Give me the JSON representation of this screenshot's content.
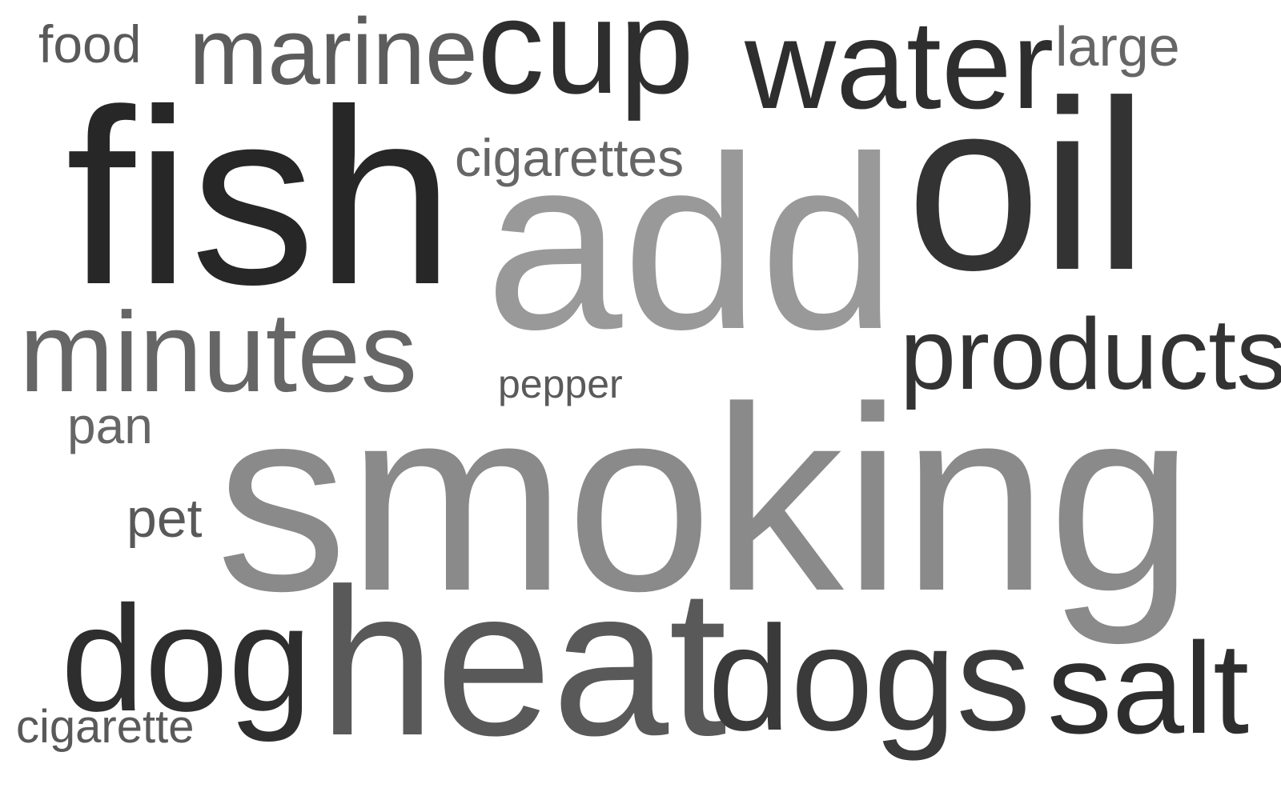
{
  "words": [
    {
      "id": "food",
      "text": "food",
      "color": "#595959"
    },
    {
      "id": "marine",
      "text": "marine",
      "color": "#5c5c5c"
    },
    {
      "id": "cup",
      "text": "cup",
      "color": "#2e2e2e"
    },
    {
      "id": "water",
      "text": "water",
      "color": "#2e2e2e"
    },
    {
      "id": "large",
      "text": "large",
      "color": "#666666"
    },
    {
      "id": "fish",
      "text": "fish",
      "color": "#272727"
    },
    {
      "id": "cigarettes",
      "text": "cigarettes",
      "color": "#666666"
    },
    {
      "id": "add",
      "text": "add",
      "color": "#999999"
    },
    {
      "id": "oil",
      "text": "oil",
      "color": "#333333"
    },
    {
      "id": "minutes",
      "text": "minutes",
      "color": "#666666"
    },
    {
      "id": "products",
      "text": "products",
      "color": "#333333"
    },
    {
      "id": "pepper",
      "text": "pepper",
      "color": "#5a5a5a"
    },
    {
      "id": "pan",
      "text": "pan",
      "color": "#666666"
    },
    {
      "id": "smoking",
      "text": "smoking",
      "color": "#8a8a8a"
    },
    {
      "id": "pet",
      "text": "pet",
      "color": "#595959"
    },
    {
      "id": "dog",
      "text": "dog",
      "color": "#2e2e2e"
    },
    {
      "id": "heat",
      "text": "heat",
      "color": "#595959"
    },
    {
      "id": "dogs",
      "text": "dogs",
      "color": "#3a3a3a"
    },
    {
      "id": "salt",
      "text": "salt",
      "color": "#2e2e2e"
    },
    {
      "id": "cigarette",
      "text": "cigarette",
      "color": "#595959"
    }
  ]
}
